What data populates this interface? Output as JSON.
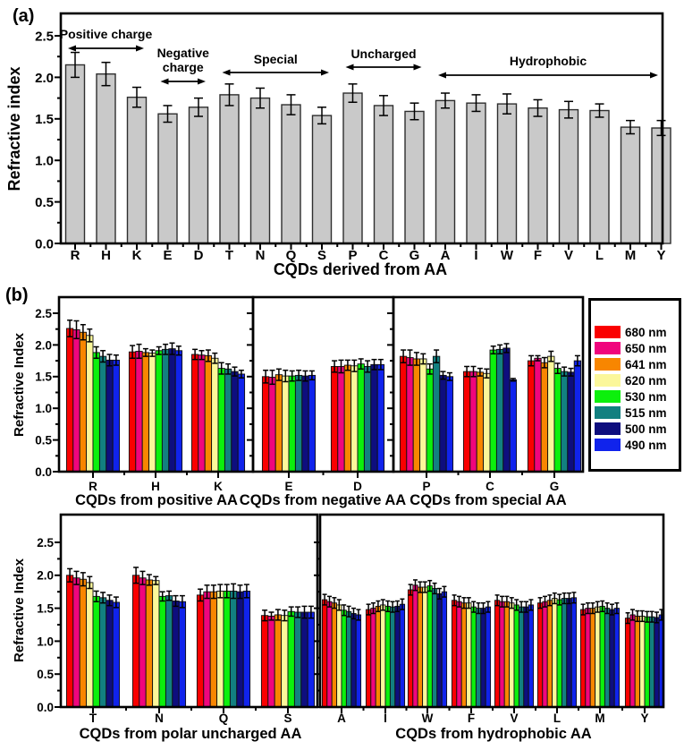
{
  "figure": {
    "panel_a_label": "(a)",
    "panel_b_label": "(b)",
    "background": "#ffffff"
  },
  "legend": {
    "position": "right",
    "entries": [
      {
        "label": "680 nm",
        "color": "#fa0000"
      },
      {
        "label": "650 nm",
        "color": "#f0057d"
      },
      {
        "label": "641 nm",
        "color": "#f88600"
      },
      {
        "label": "620 nm",
        "color": "#fbf79a"
      },
      {
        "label": "530 nm",
        "color": "#0cf00c"
      },
      {
        "label": "515 nm",
        "color": "#128080"
      },
      {
        "label": "500 nm",
        "color": "#0e0e7e"
      },
      {
        "label": "490 nm",
        "color": "#1023ec"
      }
    ]
  },
  "chart_data": [
    {
      "id": "a",
      "type": "bar",
      "title": "",
      "xlabel": "CQDs derived from AA",
      "ylabel": "Refractive index",
      "ylim": [
        0,
        2.75
      ],
      "yticks": [
        0.0,
        0.5,
        1.0,
        1.5,
        2.0,
        2.5
      ],
      "grid": false,
      "bar_color": "#c9c9c9",
      "categories": [
        "R",
        "H",
        "K",
        "E",
        "D",
        "T",
        "N",
        "Q",
        "S",
        "P",
        "C",
        "G",
        "A",
        "I",
        "W",
        "F",
        "V",
        "L",
        "M",
        "Y"
      ],
      "values": [
        2.15,
        2.04,
        1.76,
        1.56,
        1.64,
        1.79,
        1.75,
        1.67,
        1.54,
        1.81,
        1.66,
        1.59,
        1.72,
        1.69,
        1.68,
        1.63,
        1.61,
        1.6,
        1.4,
        1.39
      ],
      "errors": [
        0.15,
        0.14,
        0.12,
        0.1,
        0.11,
        0.13,
        0.12,
        0.12,
        0.1,
        0.11,
        0.12,
        0.1,
        0.09,
        0.1,
        0.12,
        0.1,
        0.1,
        0.08,
        0.08,
        0.09
      ],
      "group_annotations": [
        {
          "label": "Positive charge",
          "start": "R",
          "end": "K"
        },
        {
          "label": "Negative charge",
          "start": "E",
          "end": "D",
          "two_line": true
        },
        {
          "label": "Special",
          "start": "T",
          "end": "S"
        },
        {
          "label": "Uncharged",
          "start": "P",
          "end": "G"
        },
        {
          "label": "Hydrophobic",
          "start": "A",
          "end": "Y"
        }
      ]
    },
    {
      "id": "b1",
      "type": "grouped-bar",
      "xlabel": "CQDs from positive AA",
      "ylabel": "Refractive Index",
      "ylim": [
        0,
        2.75
      ],
      "yticks": [
        0.0,
        0.5,
        1.0,
        1.5,
        2.0,
        2.5
      ],
      "grid": false,
      "categories": [
        "R",
        "H",
        "K"
      ],
      "series": [
        {
          "name": "680 nm",
          "values": [
            2.26,
            1.89,
            1.85
          ],
          "err": [
            0.13,
            0.1,
            0.08
          ]
        },
        {
          "name": "650 nm",
          "values": [
            2.24,
            1.9,
            1.84
          ],
          "err": [
            0.14,
            0.11,
            0.07
          ]
        },
        {
          "name": "641 nm",
          "values": [
            2.2,
            1.88,
            1.83
          ],
          "err": [
            0.12,
            0.06,
            0.09
          ]
        },
        {
          "name": "620 nm",
          "values": [
            2.15,
            1.87,
            1.79
          ],
          "err": [
            0.1,
            0.05,
            0.08
          ]
        },
        {
          "name": "530 nm",
          "values": [
            1.88,
            1.91,
            1.63
          ],
          "err": [
            0.09,
            0.06,
            0.09
          ]
        },
        {
          "name": "515 nm",
          "values": [
            1.82,
            1.93,
            1.62
          ],
          "err": [
            0.09,
            0.08,
            0.08
          ]
        },
        {
          "name": "500 nm",
          "values": [
            1.76,
            1.94,
            1.58
          ],
          "err": [
            0.09,
            0.09,
            0.07
          ]
        },
        {
          "name": "490 nm",
          "values": [
            1.76,
            1.91,
            1.54
          ],
          "err": [
            0.08,
            0.07,
            0.06
          ]
        }
      ]
    },
    {
      "id": "b2",
      "type": "grouped-bar",
      "xlabel": "CQDs from negative AA",
      "ylabel": "",
      "ylim": [
        0,
        2.75
      ],
      "yticks": [
        0.0,
        0.5,
        1.0,
        1.5,
        2.0,
        2.5
      ],
      "grid": false,
      "categories": [
        "E",
        "D"
      ],
      "series": [
        {
          "name": "680 nm",
          "values": [
            1.5,
            1.66
          ],
          "err": [
            0.1,
            0.09
          ]
        },
        {
          "name": "650 nm",
          "values": [
            1.49,
            1.66
          ],
          "err": [
            0.11,
            0.1
          ]
        },
        {
          "name": "641 nm",
          "values": [
            1.53,
            1.68
          ],
          "err": [
            0.09,
            0.08
          ]
        },
        {
          "name": "620 nm",
          "values": [
            1.51,
            1.67
          ],
          "err": [
            0.09,
            0.09
          ]
        },
        {
          "name": "530 nm",
          "values": [
            1.51,
            1.7
          ],
          "err": [
            0.08,
            0.08
          ]
        },
        {
          "name": "515 nm",
          "values": [
            1.52,
            1.66
          ],
          "err": [
            0.08,
            0.09
          ]
        },
        {
          "name": "500 nm",
          "values": [
            1.51,
            1.69
          ],
          "err": [
            0.08,
            0.08
          ]
        },
        {
          "name": "490 nm",
          "values": [
            1.52,
            1.69
          ],
          "err": [
            0.07,
            0.08
          ]
        }
      ]
    },
    {
      "id": "b3",
      "type": "grouped-bar",
      "xlabel": "CQDs from special AA",
      "ylabel": "",
      "ylim": [
        0,
        2.75
      ],
      "yticks": [
        0.0,
        0.5,
        1.0,
        1.5,
        2.0,
        2.5
      ],
      "grid": false,
      "categories": [
        "P",
        "C",
        "G"
      ],
      "series": [
        {
          "name": "680 nm",
          "values": [
            1.82,
            1.58,
            1.75
          ],
          "err": [
            0.1,
            0.08,
            0.08
          ]
        },
        {
          "name": "650 nm",
          "values": [
            1.8,
            1.58,
            1.79
          ],
          "err": [
            0.12,
            0.08,
            0.04
          ]
        },
        {
          "name": "641 nm",
          "values": [
            1.78,
            1.57,
            1.72
          ],
          "err": [
            0.1,
            0.06,
            0.08
          ]
        },
        {
          "name": "620 nm",
          "values": [
            1.78,
            1.55,
            1.82
          ],
          "err": [
            0.08,
            0.07,
            0.08
          ]
        },
        {
          "name": "530 nm",
          "values": [
            1.62,
            1.92,
            1.63
          ],
          "err": [
            0.08,
            0.06,
            0.08
          ]
        },
        {
          "name": "515 nm",
          "values": [
            1.82,
            1.93,
            1.58
          ],
          "err": [
            0.1,
            0.07,
            0.07
          ]
        },
        {
          "name": "500 nm",
          "values": [
            1.52,
            1.95,
            1.57
          ],
          "err": [
            0.06,
            0.07,
            0.06
          ]
        },
        {
          "name": "490 nm",
          "values": [
            1.5,
            1.45,
            1.75
          ],
          "err": [
            0.06,
            0.02,
            0.08
          ]
        }
      ]
    },
    {
      "id": "b4",
      "type": "grouped-bar",
      "xlabel": "CQDs from polar uncharged AA",
      "ylabel": "Refractive Index",
      "ylim": [
        0,
        2.75
      ],
      "yticks": [
        0.0,
        0.5,
        1.0,
        1.5,
        2.0,
        2.5
      ],
      "grid": false,
      "categories": [
        "T",
        "N",
        "Q",
        "S"
      ],
      "series": [
        {
          "name": "680 nm",
          "values": [
            2.0,
            2.0,
            1.7,
            1.39
          ],
          "err": [
            0.1,
            0.12,
            0.09,
            0.08
          ]
        },
        {
          "name": "650 nm",
          "values": [
            1.96,
            1.96,
            1.75,
            1.38
          ],
          "err": [
            0.1,
            0.1,
            0.1,
            0.06
          ]
        },
        {
          "name": "641 nm",
          "values": [
            1.94,
            1.93,
            1.75,
            1.4
          ],
          "err": [
            0.1,
            0.08,
            0.1,
            0.08
          ]
        },
        {
          "name": "620 nm",
          "values": [
            1.89,
            1.92,
            1.76,
            1.39
          ],
          "err": [
            0.09,
            0.06,
            0.1,
            0.08
          ]
        },
        {
          "name": "530 nm",
          "values": [
            1.68,
            1.68,
            1.76,
            1.45
          ],
          "err": [
            0.08,
            0.07,
            0.1,
            0.07
          ]
        },
        {
          "name": "515 nm",
          "values": [
            1.66,
            1.69,
            1.76,
            1.44
          ],
          "err": [
            0.08,
            0.07,
            0.11,
            0.08
          ]
        },
        {
          "name": "500 nm",
          "values": [
            1.62,
            1.61,
            1.75,
            1.44
          ],
          "err": [
            0.08,
            0.08,
            0.1,
            0.09
          ]
        },
        {
          "name": "490 nm",
          "values": [
            1.59,
            1.6,
            1.76,
            1.44
          ],
          "err": [
            0.08,
            0.09,
            0.1,
            0.09
          ]
        }
      ]
    },
    {
      "id": "b5",
      "type": "grouped-bar",
      "xlabel": "CQDs from hydrophobic AA",
      "ylabel": "",
      "ylim": [
        0,
        2.75
      ],
      "yticks": [
        0.0,
        0.5,
        1.0,
        1.5,
        2.0,
        2.5
      ],
      "grid": false,
      "default_error": 0.08,
      "categories": [
        "A",
        "I",
        "W",
        "F",
        "V",
        "L",
        "M",
        "Y"
      ],
      "series": [
        {
          "name": "680 nm",
          "values": [
            1.63,
            1.48,
            1.78,
            1.62,
            1.62,
            1.58,
            1.48,
            1.35
          ]
        },
        {
          "name": "650 nm",
          "values": [
            1.6,
            1.5,
            1.85,
            1.6,
            1.6,
            1.6,
            1.5,
            1.4
          ]
        },
        {
          "name": "641 nm",
          "values": [
            1.58,
            1.53,
            1.82,
            1.58,
            1.6,
            1.62,
            1.5,
            1.38
          ]
        },
        {
          "name": "620 nm",
          "values": [
            1.55,
            1.55,
            1.82,
            1.58,
            1.58,
            1.65,
            1.52,
            1.38
          ]
        },
        {
          "name": "530 nm",
          "values": [
            1.47,
            1.53,
            1.84,
            1.52,
            1.55,
            1.63,
            1.53,
            1.37
          ]
        },
        {
          "name": "515 nm",
          "values": [
            1.45,
            1.52,
            1.8,
            1.5,
            1.52,
            1.65,
            1.5,
            1.37
          ]
        },
        {
          "name": "500 nm",
          "values": [
            1.42,
            1.53,
            1.72,
            1.5,
            1.52,
            1.65,
            1.48,
            1.36
          ]
        },
        {
          "name": "490 nm",
          "values": [
            1.4,
            1.56,
            1.75,
            1.52,
            1.55,
            1.66,
            1.5,
            1.4
          ]
        }
      ]
    }
  ]
}
